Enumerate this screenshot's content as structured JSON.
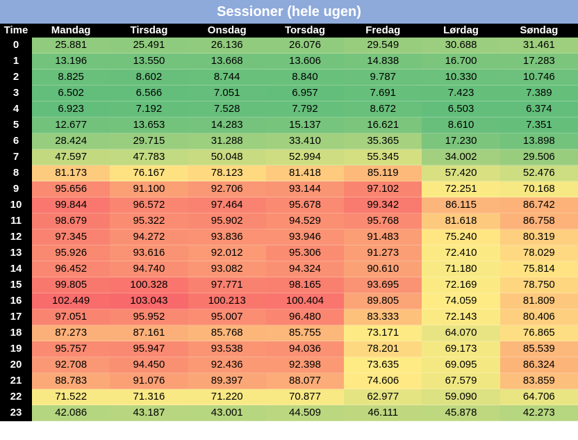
{
  "title": "Sessioner (hele ugen)",
  "chart_data": {
    "type": "heatmap",
    "title": "Sessioner (hele ugen)",
    "corner_label": "Time",
    "columns": [
      "Mandag",
      "Tirsdag",
      "Onsdag",
      "Torsdag",
      "Fredag",
      "Lørdag",
      "Søndag"
    ],
    "rows": [
      "0",
      "1",
      "2",
      "3",
      "4",
      "5",
      "6",
      "7",
      "8",
      "9",
      "10",
      "11",
      "12",
      "13",
      "14",
      "15",
      "16",
      "17",
      "18",
      "19",
      "20",
      "21",
      "22",
      "23"
    ],
    "values": [
      [
        "25.881",
        "25.491",
        "26.136",
        "26.076",
        "29.549",
        "30.688",
        "31.461"
      ],
      [
        "13.196",
        "13.550",
        "13.668",
        "13.606",
        "14.838",
        "16.700",
        "17.283"
      ],
      [
        "8.825",
        "8.602",
        "8.744",
        "8.840",
        "9.787",
        "10.330",
        "10.746"
      ],
      [
        "6.502",
        "6.566",
        "7.051",
        "6.957",
        "7.691",
        "7.423",
        "7.389"
      ],
      [
        "6.923",
        "7.192",
        "7.528",
        "7.792",
        "8.672",
        "6.503",
        "6.374"
      ],
      [
        "12.677",
        "13.653",
        "14.283",
        "15.137",
        "16.621",
        "8.610",
        "7.351"
      ],
      [
        "28.424",
        "29.715",
        "31.288",
        "33.410",
        "35.365",
        "17.230",
        "13.898"
      ],
      [
        "47.597",
        "47.783",
        "50.048",
        "52.994",
        "55.345",
        "34.002",
        "29.506"
      ],
      [
        "81.173",
        "76.167",
        "78.123",
        "81.418",
        "85.119",
        "57.420",
        "52.476"
      ],
      [
        "95.656",
        "91.100",
        "92.706",
        "93.144",
        "97.102",
        "72.251",
        "70.168"
      ],
      [
        "99.844",
        "96.572",
        "97.464",
        "95.678",
        "99.342",
        "86.115",
        "86.742"
      ],
      [
        "98.679",
        "95.322",
        "95.902",
        "94.529",
        "95.768",
        "81.618",
        "86.758"
      ],
      [
        "97.345",
        "94.272",
        "93.836",
        "93.946",
        "91.483",
        "75.240",
        "80.319"
      ],
      [
        "95.926",
        "93.616",
        "92.012",
        "95.306",
        "91.273",
        "72.410",
        "78.029"
      ],
      [
        "96.452",
        "94.740",
        "93.082",
        "94.324",
        "90.610",
        "71.180",
        "75.814"
      ],
      [
        "99.805",
        "100.328",
        "97.771",
        "98.165",
        "93.695",
        "72.169",
        "78.750"
      ],
      [
        "102.449",
        "103.043",
        "100.213",
        "100.404",
        "89.805",
        "74.059",
        "81.809"
      ],
      [
        "97.051",
        "95.952",
        "95.007",
        "96.480",
        "83.333",
        "72.143",
        "80.406"
      ],
      [
        "87.273",
        "87.161",
        "85.768",
        "85.755",
        "73.171",
        "64.070",
        "76.865"
      ],
      [
        "95.757",
        "95.947",
        "93.538",
        "94.036",
        "78.201",
        "69.173",
        "85.539"
      ],
      [
        "92.708",
        "94.450",
        "92.436",
        "92.398",
        "73.635",
        "69.095",
        "86.324"
      ],
      [
        "88.783",
        "91.076",
        "89.397",
        "88.077",
        "74.606",
        "67.579",
        "83.859"
      ],
      [
        "71.522",
        "71.316",
        "71.220",
        "70.877",
        "62.977",
        "59.090",
        "64.706"
      ],
      [
        "42.086",
        "43.187",
        "43.001",
        "44.509",
        "46.111",
        "45.878",
        "42.273"
      ]
    ],
    "color_scale": {
      "low": "#63be7b",
      "mid": "#ffeb84",
      "high": "#f8696b"
    }
  }
}
